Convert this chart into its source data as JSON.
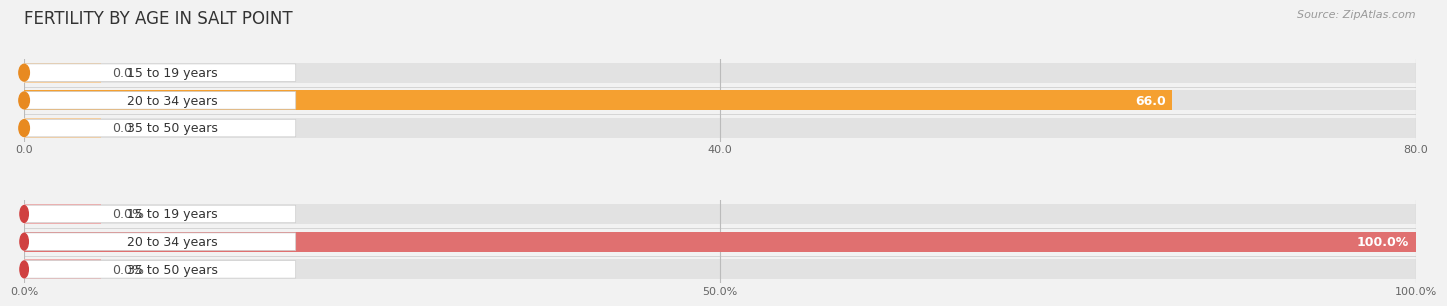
{
  "title": "FERTILITY BY AGE IN SALT POINT",
  "source": "Source: ZipAtlas.com",
  "top_chart": {
    "categories": [
      "15 to 19 years",
      "20 to 34 years",
      "35 to 50 years"
    ],
    "values": [
      0.0,
      66.0,
      0.0
    ],
    "max_value": 80.0,
    "tick_values": [
      0.0,
      40.0,
      80.0
    ],
    "bar_color_main": "#F5A030",
    "bar_color_light": "#F5CFA0",
    "bar_color_circle": "#E88A20"
  },
  "bottom_chart": {
    "categories": [
      "15 to 19 years",
      "20 to 34 years",
      "35 to 50 years"
    ],
    "values": [
      0.0,
      100.0,
      0.0
    ],
    "max_value": 100.0,
    "tick_values": [
      0.0,
      50.0,
      100.0
    ],
    "bar_color_main": "#E07070",
    "bar_color_light": "#EFADAD",
    "bar_color_circle": "#D04040"
  },
  "bg_color": "#f2f2f2",
  "bar_bg_color": "#e2e2e2",
  "bar_separator_color": "#d0d0d0",
  "title_fontsize": 12,
  "label_fontsize": 9,
  "tick_fontsize": 8,
  "source_fontsize": 8
}
